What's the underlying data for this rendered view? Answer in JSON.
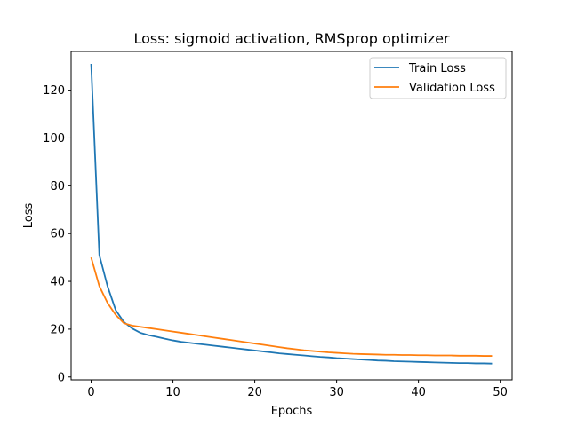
{
  "chart_data": {
    "type": "line",
    "title": "Loss: sigmoid activation, RMSprop optimizer",
    "xlabel": "Epochs",
    "ylabel": "Loss",
    "xlim": [
      -2.45,
      51.45
    ],
    "ylim": [
      -1.2,
      136.2
    ],
    "xticks": [
      0,
      10,
      20,
      30,
      40,
      50
    ],
    "yticks": [
      0,
      20,
      40,
      60,
      80,
      100,
      120
    ],
    "legend": "top-right",
    "grid": false,
    "x": [
      0,
      1,
      2,
      3,
      4,
      5,
      6,
      7,
      8,
      9,
      10,
      11,
      12,
      13,
      14,
      15,
      16,
      17,
      18,
      19,
      20,
      21,
      22,
      23,
      24,
      25,
      26,
      27,
      28,
      29,
      30,
      31,
      32,
      33,
      34,
      35,
      36,
      37,
      38,
      39,
      40,
      41,
      42,
      43,
      44,
      45,
      46,
      47,
      48,
      49
    ],
    "series": [
      {
        "name": "Train Loss",
        "color": "#1f77b4",
        "values": [
          131,
          51,
          38,
          28,
          23,
          20.3,
          18.5,
          17.5,
          16.8,
          16,
          15.3,
          14.7,
          14.3,
          13.9,
          13.5,
          13.1,
          12.7,
          12.3,
          11.9,
          11.5,
          11.1,
          10.7,
          10.3,
          9.9,
          9.6,
          9.3,
          9.0,
          8.7,
          8.4,
          8.2,
          7.9,
          7.7,
          7.5,
          7.3,
          7.1,
          6.9,
          6.8,
          6.6,
          6.5,
          6.4,
          6.3,
          6.2,
          6.1,
          6.0,
          5.9,
          5.8,
          5.8,
          5.7,
          5.7,
          5.6
        ]
      },
      {
        "name": "Validation Loss",
        "color": "#ff7f0e",
        "values": [
          50,
          38,
          31,
          26,
          22.5,
          21.5,
          21,
          20.5,
          20,
          19.5,
          19,
          18.5,
          18,
          17.5,
          17,
          16.5,
          16,
          15.5,
          15,
          14.5,
          14,
          13.5,
          13,
          12.5,
          12,
          11.6,
          11.2,
          10.9,
          10.6,
          10.3,
          10.1,
          9.9,
          9.7,
          9.6,
          9.5,
          9.4,
          9.3,
          9.3,
          9.2,
          9.2,
          9.1,
          9.1,
          9.0,
          9.0,
          9.0,
          8.9,
          8.9,
          8.9,
          8.8,
          8.8
        ]
      }
    ]
  }
}
